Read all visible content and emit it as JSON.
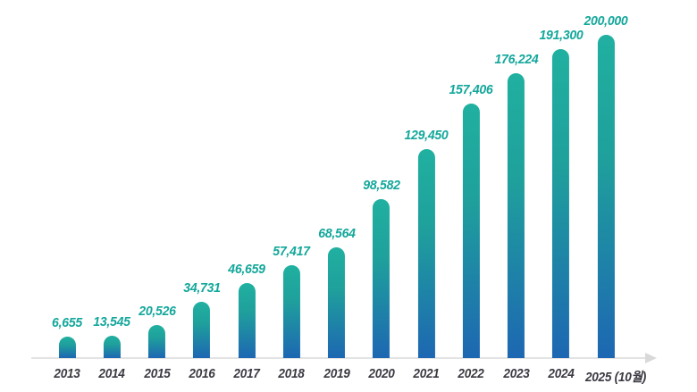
{
  "chart_data": {
    "type": "bar",
    "categories": [
      "2013",
      "2014",
      "2015",
      "2016",
      "2017",
      "2018",
      "2019",
      "2020",
      "2021",
      "2022",
      "2023",
      "2024",
      "2025 (10월)"
    ],
    "values": [
      6655,
      13545,
      20526,
      34731,
      46659,
      57417,
      68564,
      98582,
      129450,
      157406,
      176224,
      191300,
      200000
    ],
    "value_labels": [
      "6,655",
      "13,545",
      "20,526",
      "34,731",
      "46,659",
      "57,417",
      "68,564",
      "98,582",
      "129,450",
      "157,406",
      "176,224",
      "191,300",
      "200,000"
    ],
    "title": "",
    "xlabel": "",
    "ylabel": "",
    "ylim": [
      0,
      200000
    ],
    "grid": false,
    "legend": false,
    "axis_style": "horizontal baseline with right arrow",
    "colors": {
      "bar_gradient_top": "#20b0a0",
      "bar_gradient_mid": "#1fa09c",
      "bar_gradient_bottom": "#1d67b2",
      "value_label": "#14a79b",
      "year_label": "#3a3a42",
      "axis_line": "#e3e3e3",
      "axis_arrow": "#d9d9d9",
      "background": "#ffffff"
    }
  }
}
